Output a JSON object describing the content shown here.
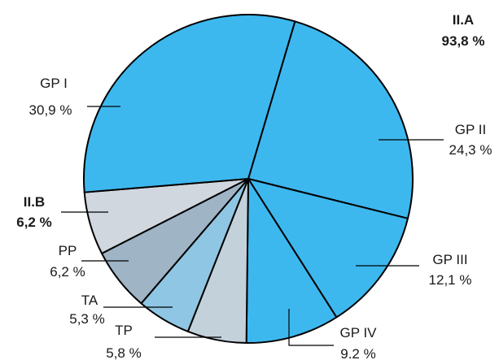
{
  "chart_data": {
    "type": "pie",
    "unit": "%",
    "slices": [
      {
        "name": "GP II",
        "value_label": "24,3 %",
        "value": 24.3,
        "color": "#3db8ef"
      },
      {
        "name": "GP III",
        "value_label": "12,1 %",
        "value": 12.1,
        "color": "#3db8ef"
      },
      {
        "name": "GP IV",
        "value_label": "9.2 %",
        "value": 9.2,
        "color": "#3db8ef"
      },
      {
        "name": "TP",
        "value_label": "5,8 %",
        "value": 5.8,
        "color": "#c3d1db"
      },
      {
        "name": "TA",
        "value_label": "5,3 %",
        "value": 5.3,
        "color": "#8fc6e3"
      },
      {
        "name": "PP",
        "value_label": "6,2 %",
        "value": 6.2,
        "color": "#9fb5c6"
      },
      {
        "name": "",
        "value_label": "",
        "value": 6.2,
        "color": "#d0d7de"
      },
      {
        "name": "GP I",
        "value_label": "30,9 %",
        "value": 30.9,
        "color": "#3db8ef"
      }
    ],
    "groups": [
      {
        "name": "II.A",
        "value_label": "93,8 %",
        "value": 93.8
      },
      {
        "name": "II.B",
        "value_label": "6,2 %",
        "value": 6.2
      }
    ],
    "start_angle_deg": 16.5,
    "direction": "clockwise"
  }
}
